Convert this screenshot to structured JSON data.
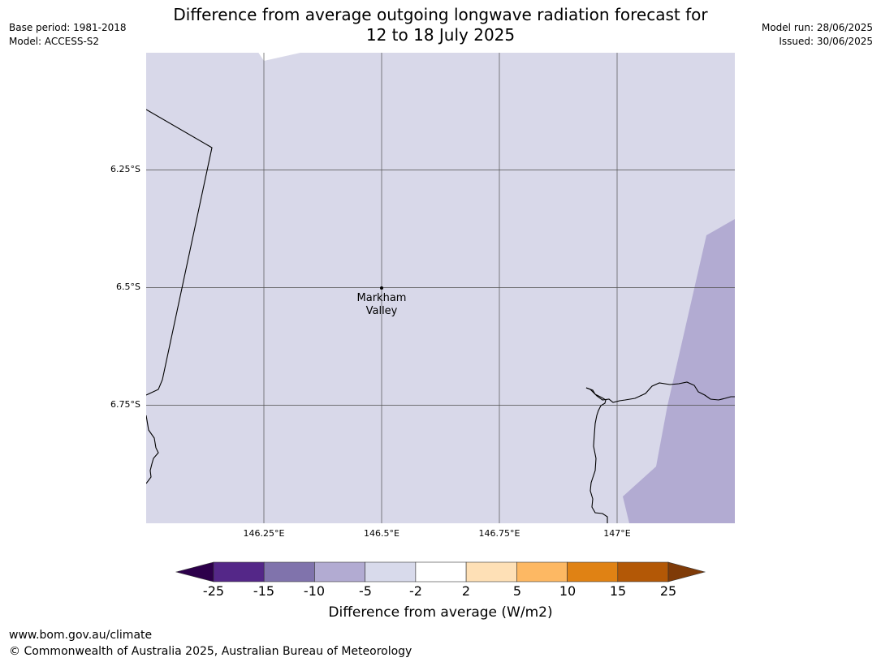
{
  "header": {
    "base_period": "Base period: 1981-2018",
    "model": "Model: ACCESS-S2",
    "title_line1": "Difference from average outgoing longwave radiation forecast for",
    "title_line2": "12 to 18 July 2025",
    "model_run": "Model run: 28/06/2025",
    "issued": "Issued: 30/06/2025"
  },
  "map": {
    "lat_ticks": [
      "6.25°S",
      "6.5°S",
      "6.75°S"
    ],
    "lon_ticks": [
      "146.25°E",
      "146.5°E",
      "146.75°E",
      "147°E"
    ],
    "place": {
      "name_line1": "Markham",
      "name_line2": "Valley"
    },
    "fill_colors": {
      "background_class": "#d8d8e9",
      "negative_class": "#b2abd2"
    },
    "background_bin": "-5 to -2",
    "east_region_bin": "-10 to -5"
  },
  "colorbar": {
    "ticks": [
      "-25",
      "-15",
      "-10",
      "-5",
      "-2",
      "2",
      "5",
      "10",
      "15",
      "25"
    ],
    "colors": [
      "#2d004b",
      "#542788",
      "#8073ac",
      "#b2abd2",
      "#d8daeb",
      "#ffffff",
      "#fee0b6",
      "#fdb863",
      "#e08214",
      "#b35806",
      "#7f3b08"
    ],
    "label": "Difference from average (W/m2)"
  },
  "footer": {
    "url": "www.bom.gov.au/climate",
    "copyright": "© Commonwealth of Australia 2025, Australian Bureau of Meteorology"
  }
}
